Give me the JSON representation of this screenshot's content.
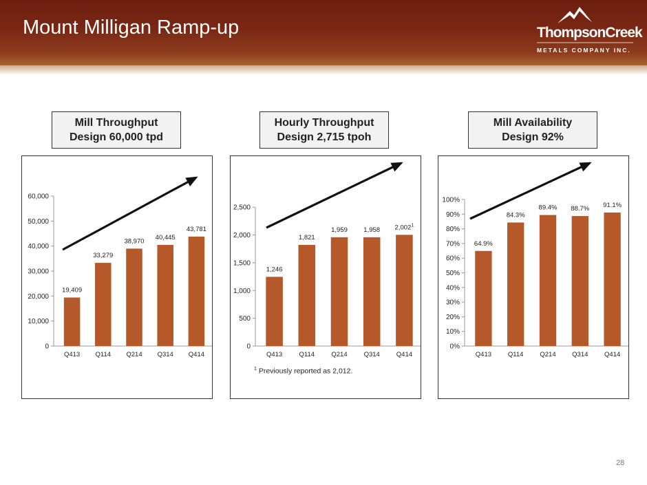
{
  "header": {
    "title": "Mount Milligan Ramp-up",
    "logo_name": "ThompsonCreek",
    "logo_sub": "METALS COMPANY INC.",
    "bg_color": "#7a2814"
  },
  "boxes": [
    {
      "line1": "Mill Throughput",
      "line2": "Design 60,000 tpd"
    },
    {
      "line1": "Hourly Throughput",
      "line2": "Design 2,715 tpoh"
    },
    {
      "line1": "Mill Availability",
      "line2": "Design 92%"
    }
  ],
  "bar_color": "#b5582a",
  "chart_data": [
    {
      "type": "bar",
      "categories": [
        "Q413",
        "Q114",
        "Q214",
        "Q314",
        "Q414"
      ],
      "values": [
        19409,
        33279,
        38970,
        40445,
        43781
      ],
      "labels": [
        "19,409",
        "33,279",
        "38,970",
        "40,445",
        "43,781"
      ],
      "ylim": [
        0,
        60000
      ],
      "yticks": [
        0,
        10000,
        20000,
        30000,
        40000,
        50000,
        60000
      ],
      "ytick_labels": [
        "0",
        "10,000",
        "20,000",
        "30,000",
        "40,000",
        "50,000",
        "60,000"
      ],
      "trend_arrow": true
    },
    {
      "type": "bar",
      "categories": [
        "Q413",
        "Q114",
        "Q214",
        "Q314",
        "Q414"
      ],
      "values": [
        1246,
        1821,
        1959,
        1958,
        2002
      ],
      "labels": [
        "1,246",
        "1,821",
        "1,959",
        "1,958",
        "2,002"
      ],
      "label_superscripts": [
        "",
        "",
        "",
        "",
        "1"
      ],
      "ylim": [
        0,
        2700
      ],
      "yticks": [
        0,
        500,
        1000,
        1500,
        2000,
        2500
      ],
      "ytick_labels": [
        "0",
        "500",
        "1,000",
        "1,500",
        "2,000",
        "2,500"
      ],
      "trend_arrow": true,
      "footnote_mark": "1",
      "footnote": "Previously reported as 2,012."
    },
    {
      "type": "bar",
      "categories": [
        "Q413",
        "Q114",
        "Q214",
        "Q314",
        "Q414"
      ],
      "values": [
        64.9,
        84.3,
        89.4,
        88.7,
        91.1
      ],
      "labels": [
        "64.9%",
        "84.3%",
        "89.4%",
        "88.7%",
        "91.1%"
      ],
      "ylim": [
        0,
        100
      ],
      "yticks": [
        0,
        10,
        20,
        30,
        40,
        50,
        60,
        70,
        80,
        90,
        100
      ],
      "ytick_labels": [
        "0%",
        "10%",
        "20%",
        "30%",
        "40%",
        "50%",
        "60%",
        "70%",
        "80%",
        "90%",
        "100%"
      ],
      "trend_arrow": true
    }
  ],
  "page_number": "28"
}
